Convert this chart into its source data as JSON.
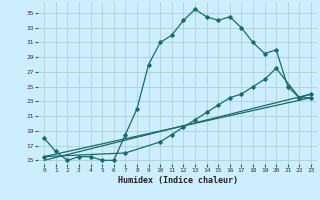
{
  "title": "",
  "xlabel": "Humidex (Indice chaleur)",
  "bg_color": "#cceeff",
  "grid_color": "#aacccc",
  "line_color": "#1a6b6b",
  "xlim": [
    -0.5,
    23.5
  ],
  "ylim": [
    14.5,
    36.5
  ],
  "yticks": [
    15,
    17,
    19,
    21,
    23,
    25,
    27,
    29,
    31,
    33,
    35
  ],
  "xticks": [
    0,
    1,
    2,
    3,
    4,
    5,
    6,
    7,
    8,
    9,
    10,
    11,
    12,
    13,
    14,
    15,
    16,
    17,
    18,
    19,
    20,
    21,
    22,
    23
  ],
  "series1_x": [
    0,
    1,
    2,
    3,
    4,
    5,
    6,
    7,
    8,
    9,
    10,
    11,
    12,
    13,
    14,
    15,
    16,
    17,
    18,
    19,
    20,
    21,
    22,
    23
  ],
  "series1_y": [
    18.0,
    16.2,
    15.0,
    15.5,
    15.5,
    15.0,
    15.0,
    18.5,
    22.0,
    28.0,
    31.0,
    32.0,
    34.0,
    35.5,
    34.5,
    34.0,
    34.5,
    33.0,
    31.0,
    29.5,
    30.0,
    25.0,
    23.5,
    23.5
  ],
  "series2_x": [
    0,
    7,
    10,
    11,
    12,
    13,
    14,
    15,
    16,
    17,
    18,
    19,
    20,
    22,
    23
  ],
  "series2_y": [
    15.5,
    16.0,
    17.5,
    18.5,
    19.5,
    20.5,
    21.5,
    22.5,
    23.5,
    24.0,
    25.0,
    26.0,
    27.5,
    23.5,
    24.0
  ],
  "series3_x": [
    0,
    23
  ],
  "series3_y": [
    15.5,
    23.5
  ],
  "series4_x": [
    0,
    23
  ],
  "series4_y": [
    15.0,
    24.0
  ]
}
